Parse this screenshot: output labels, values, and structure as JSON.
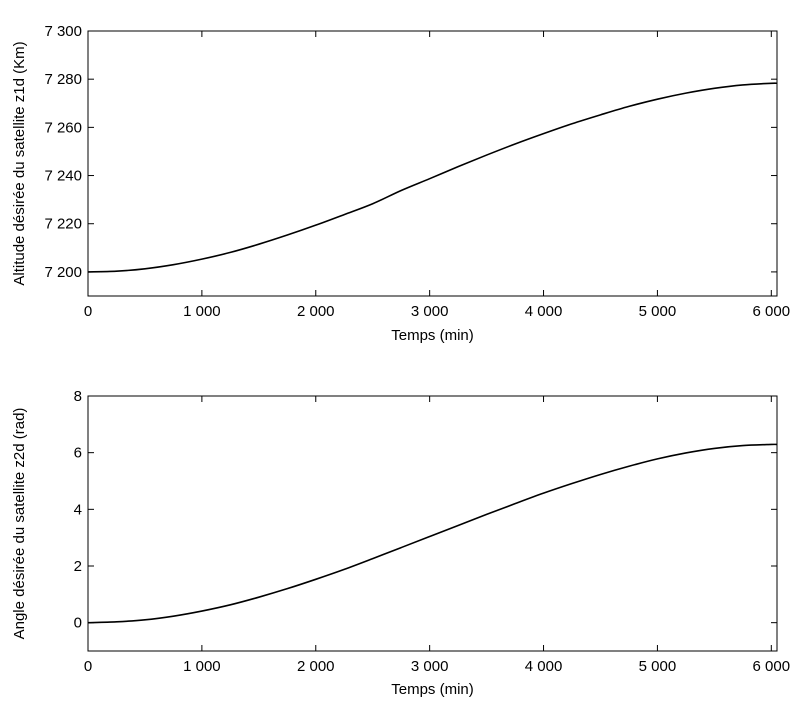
{
  "chart_data": [
    {
      "type": "line",
      "xlabel": "Temps (min)",
      "ylabel": "Altitude désirée du satellite z1d  (Km)",
      "xlim": [
        0,
        6050
      ],
      "ylim": [
        7190,
        7300
      ],
      "xticks": [
        0,
        1000,
        2000,
        3000,
        4000,
        5000,
        6000
      ],
      "xtick_labels": [
        "0",
        "1 000",
        "2 000",
        "3 000",
        "4 000",
        "5 000",
        "6 000"
      ],
      "yticks": [
        7200,
        7220,
        7240,
        7260,
        7280,
        7300
      ],
      "ytick_labels": [
        "7 200",
        "7 220",
        "7 240",
        "7 260",
        "7 280",
        "7 300"
      ],
      "grid": false,
      "series": [
        {
          "color": "#000000",
          "x": [
            0,
            250,
            500,
            750,
            1000,
            1250,
            1500,
            1750,
            2000,
            2250,
            2500,
            2750,
            3000,
            3250,
            3500,
            3750,
            4000,
            4250,
            4500,
            4750,
            5000,
            5250,
            5500,
            5750,
            6000,
            6050
          ],
          "y": [
            7200.0,
            7200.3,
            7201.3,
            7203.0,
            7205.3,
            7208.1,
            7211.5,
            7215.3,
            7219.4,
            7223.8,
            7228.3,
            7233.8,
            7238.7,
            7243.7,
            7248.5,
            7253.1,
            7257.4,
            7261.5,
            7265.2,
            7268.7,
            7271.7,
            7274.2,
            7276.2,
            7277.6,
            7278.3,
            7278.3
          ]
        }
      ]
    },
    {
      "type": "line",
      "xlabel": "Temps (min)",
      "ylabel": "Angle désirée du satellite z2d  (rad)",
      "xlim": [
        0,
        6050
      ],
      "ylim": [
        -1,
        8
      ],
      "xticks": [
        0,
        1000,
        2000,
        3000,
        4000,
        5000,
        6000
      ],
      "xtick_labels": [
        "0",
        "1 000",
        "2 000",
        "3 000",
        "4 000",
        "5 000",
        "6 000"
      ],
      "yticks": [
        0,
        2,
        4,
        6,
        8
      ],
      "ytick_labels": [
        "0",
        "2",
        "4",
        "6",
        "8"
      ],
      "grid": false,
      "series": [
        {
          "color": "#000000",
          "x": [
            0,
            250,
            500,
            750,
            1000,
            1250,
            1500,
            1750,
            2000,
            2250,
            2500,
            2750,
            3000,
            3250,
            3500,
            3750,
            4000,
            4250,
            4500,
            4750,
            5000,
            5250,
            5500,
            5750,
            6000,
            6050
          ],
          "y": [
            0.0,
            0.03,
            0.1,
            0.23,
            0.41,
            0.63,
            0.9,
            1.2,
            1.53,
            1.88,
            2.26,
            2.65,
            3.04,
            3.43,
            3.82,
            4.2,
            4.57,
            4.91,
            5.23,
            5.52,
            5.78,
            5.99,
            6.15,
            6.25,
            6.29,
            6.29
          ]
        }
      ]
    }
  ]
}
